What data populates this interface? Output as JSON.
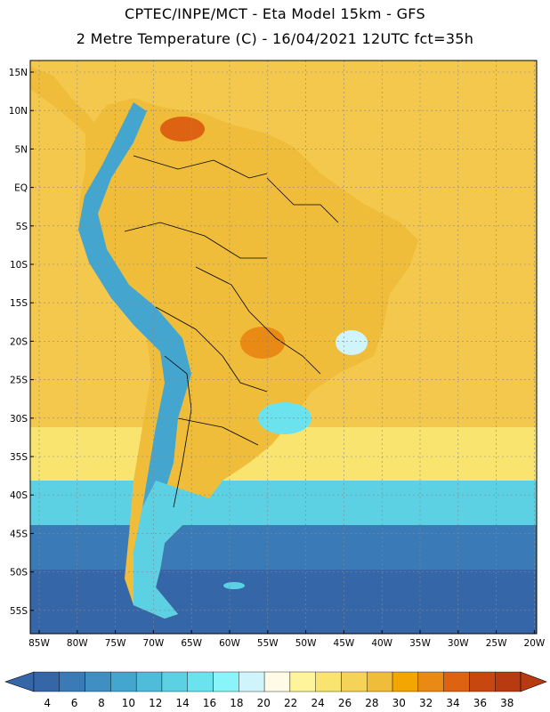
{
  "header": {
    "line1": "CPTEC/INPE/MCT -  Eta Model 15km - GFS",
    "line2": "2 Metre Temperature (C) - 16/04/2021 12UTC fct=35h"
  },
  "axes": {
    "lat_labels": [
      "15N",
      "10N",
      "5N",
      "EQ",
      "5S",
      "10S",
      "15S",
      "20S",
      "25S",
      "30S",
      "35S",
      "40S",
      "45S",
      "50S",
      "55S"
    ],
    "lon_labels": [
      "85W",
      "80W",
      "75W",
      "70W",
      "65W",
      "60W",
      "55W",
      "50W",
      "45W",
      "40W",
      "35W",
      "30W",
      "25W",
      "20W"
    ]
  },
  "colorbar": {
    "labels": [
      "4",
      "6",
      "8",
      "10",
      "12",
      "14",
      "16",
      "18",
      "20",
      "22",
      "24",
      "26",
      "28",
      "30",
      "32",
      "34",
      "36",
      "38"
    ],
    "colors": [
      "#3466a8",
      "#3a7ab6",
      "#3f8fc3",
      "#44a6cf",
      "#4fbcd9",
      "#5cd1e3",
      "#6ae3ee",
      "#8af4fb",
      "#cff4fb",
      "#fffbe6",
      "#fdf49b",
      "#f9e470",
      "#f5d356",
      "#efbd3a",
      "#f3a602",
      "#e88a14",
      "#dd6211",
      "#c84711",
      "#b83a10"
    ]
  },
  "palette": {
    "ocean_warm": "#f4c84c",
    "ocean_mid": "#f9e470",
    "ocean_cool": "#5cd1e3",
    "ocean_cold": "#3a7ab6",
    "ocean_coldest": "#3466a8",
    "land_hot": "#efbd3a",
    "land_mountain": "#44a6cf",
    "border": "#000000",
    "grid": "#888888"
  }
}
